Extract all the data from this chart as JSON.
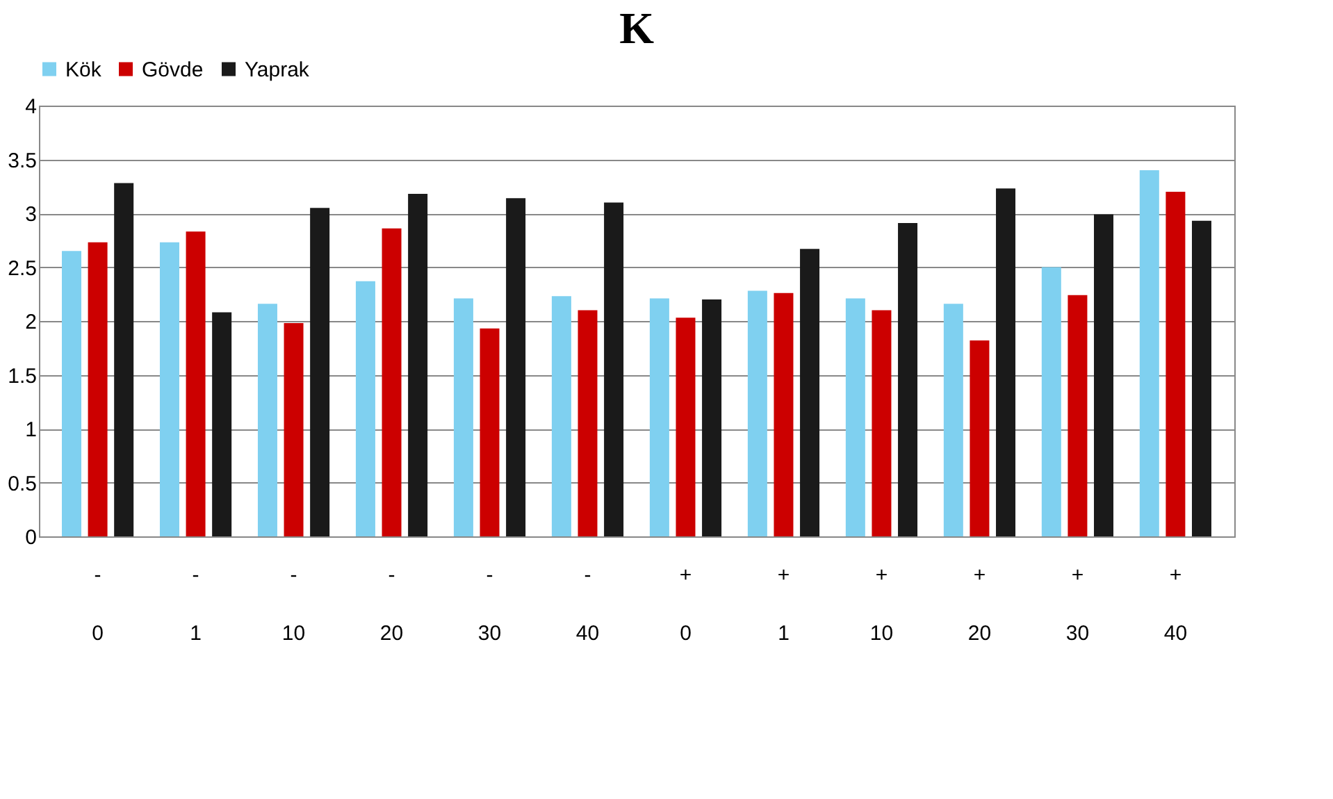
{
  "chart_data": {
    "type": "bar",
    "title": "K",
    "categories": [
      "- 0",
      "- 1",
      "- 10",
      "- 20",
      "- 30",
      "- 40",
      "+ 0",
      "+ 1",
      "+ 10",
      "+ 20",
      "+ 30",
      "+ 40"
    ],
    "series": [
      {
        "name": "Kök",
        "color": "#7fd0f0",
        "values": [
          2.65,
          2.73,
          2.16,
          2.37,
          2.21,
          2.23,
          2.21,
          2.28,
          2.21,
          2.16,
          2.5,
          3.4
        ]
      },
      {
        "name": "Gövde",
        "color": "#cc0000",
        "values": [
          2.73,
          2.83,
          1.98,
          2.86,
          1.93,
          2.1,
          2.03,
          2.26,
          2.1,
          1.82,
          2.24,
          3.2
        ]
      },
      {
        "name": "Yaprak",
        "color": "#1a1a1a",
        "values": [
          3.28,
          2.08,
          3.05,
          3.18,
          3.14,
          3.1,
          2.2,
          2.67,
          2.91,
          3.23,
          2.99,
          2.93
        ]
      }
    ],
    "ylim": [
      0,
      4
    ],
    "yticks": [
      0,
      0.5,
      1,
      1.5,
      2,
      2.5,
      3,
      3.5,
      4
    ],
    "grid": "y",
    "legend": "top"
  }
}
